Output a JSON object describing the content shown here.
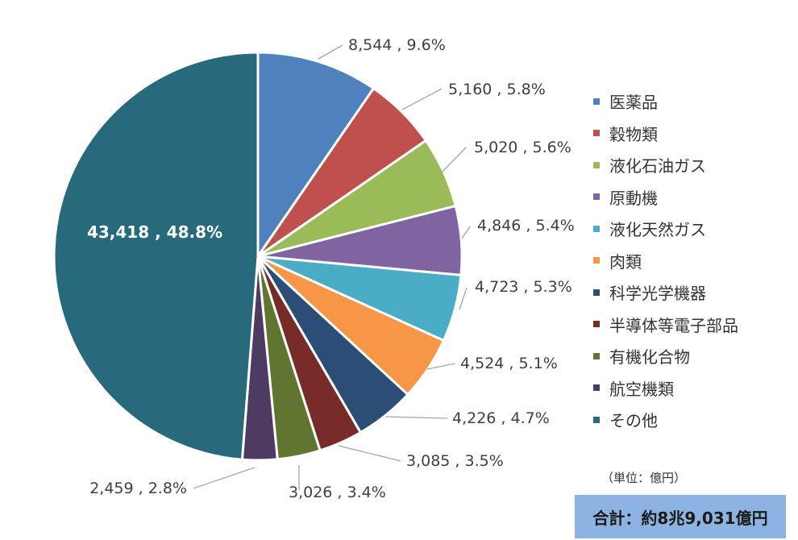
{
  "chart_data": {
    "type": "pie",
    "unit_note": "（単位：億円）",
    "total_label": "合計：約8兆9,031億円",
    "slices": [
      {
        "name": "医薬品",
        "value": 8544,
        "percent": "9.6%",
        "label": "8,544 , 9.6%",
        "color": "#4f81bd"
      },
      {
        "name": "穀物類",
        "value": 5160,
        "percent": "5.8%",
        "label": "5,160 , 5.8%",
        "color": "#c0504d"
      },
      {
        "name": "液化石油ガス",
        "value": 5020,
        "percent": "5.6%",
        "label": "5,020 , 5.6%",
        "color": "#9bbb59"
      },
      {
        "name": "原動機",
        "value": 4846,
        "percent": "5.4%",
        "label": "4,846 , 5.4%",
        "color": "#8064a2"
      },
      {
        "name": "液化天然ガス",
        "value": 4723,
        "percent": "5.3%",
        "label": "4,723 , 5.3%",
        "color": "#4bacc6"
      },
      {
        "name": "肉類",
        "value": 4524,
        "percent": "5.1%",
        "label": "4,524 , 5.1%",
        "color": "#f79646"
      },
      {
        "name": "科学光学機器",
        "value": 4226,
        "percent": "4.7%",
        "label": "4,226 , 4.7%",
        "color": "#2c4d75"
      },
      {
        "name": "半導体等電子部品",
        "value": 3085,
        "percent": "3.5%",
        "label": "3,085 , 3.5%",
        "color": "#772c2a"
      },
      {
        "name": "有機化合物",
        "value": 3026,
        "percent": "3.4%",
        "label": "3,026 , 3.4%",
        "color": "#5f7530"
      },
      {
        "name": "航空機類",
        "value": 2459,
        "percent": "2.8%",
        "label": "2,459 , 2.8%",
        "color": "#4d3b62"
      },
      {
        "name": "その他",
        "value": 43418,
        "percent": "48.8%",
        "label": "43,418 , 48.8%",
        "color": "#276a7c"
      }
    ]
  }
}
